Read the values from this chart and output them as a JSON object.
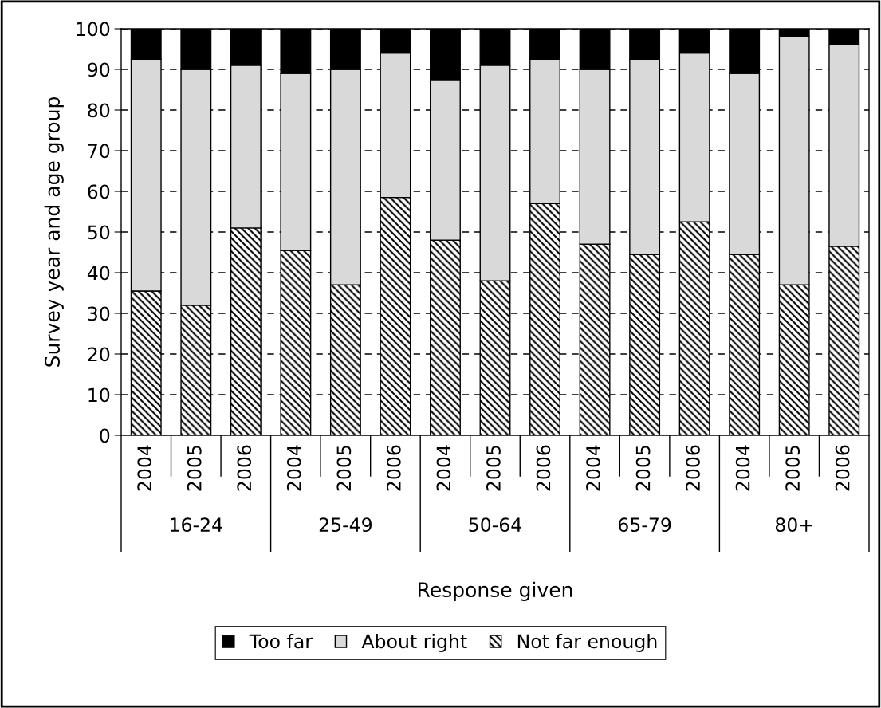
{
  "chart_data": {
    "type": "bar",
    "stacked": true,
    "ylabel": "Survey year and age group",
    "xlabel": "Response given",
    "categories": [
      "2004",
      "2005",
      "2006",
      "2004",
      "2005",
      "2006",
      "2004",
      "2005",
      "2006",
      "2004",
      "2005",
      "2006",
      "2004",
      "2005",
      "2006"
    ],
    "annotations": [
      "16-24",
      "25-49",
      "50-64",
      "65-79",
      "80+"
    ],
    "series": [
      {
        "name": "Not far enough",
        "color": "#000000",
        "values": [
          35.5,
          32,
          51,
          45.5,
          37,
          58.5,
          48,
          38,
          57,
          47,
          44.5,
          52.5,
          44.5,
          37,
          46.5
        ]
      },
      {
        "name": "About right",
        "color": "#d9d9d9",
        "values": [
          57,
          58,
          40,
          43.5,
          53,
          35.5,
          39.5,
          53,
          35.5,
          43,
          48,
          41.5,
          44.5,
          61,
          49.5
        ]
      },
      {
        "name": "Too far",
        "color": "#000000",
        "values": [
          7.5,
          10,
          9,
          11,
          10,
          6,
          12.5,
          9,
          7.5,
          10,
          7.5,
          6,
          11,
          2,
          4
        ]
      }
    ],
    "ylim": [
      0,
      100
    ],
    "yticks": [
      0,
      10,
      20,
      30,
      40,
      50,
      60,
      70,
      80,
      90,
      100
    ],
    "grid": "y",
    "legend": "bottom"
  }
}
